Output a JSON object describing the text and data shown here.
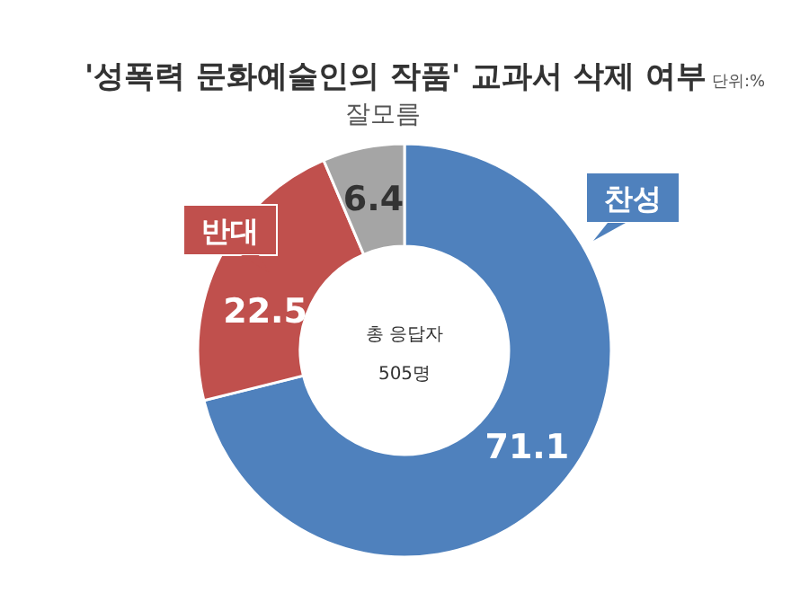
{
  "chart_data": {
    "type": "donut",
    "title": "'성폭력 문화예술인의 작품' 교과서 삭제 여부",
    "annotations": [
      "단위:%",
      "총 응답자",
      "505명"
    ],
    "categories": [
      "찬성",
      "반대",
      "잘모름"
    ],
    "values": [
      71.1,
      22.5,
      6.4
    ],
    "colors": [
      "#4f81bd",
      "#c0504d",
      "#a5a5a5"
    ],
    "data_labels": true
  }
}
